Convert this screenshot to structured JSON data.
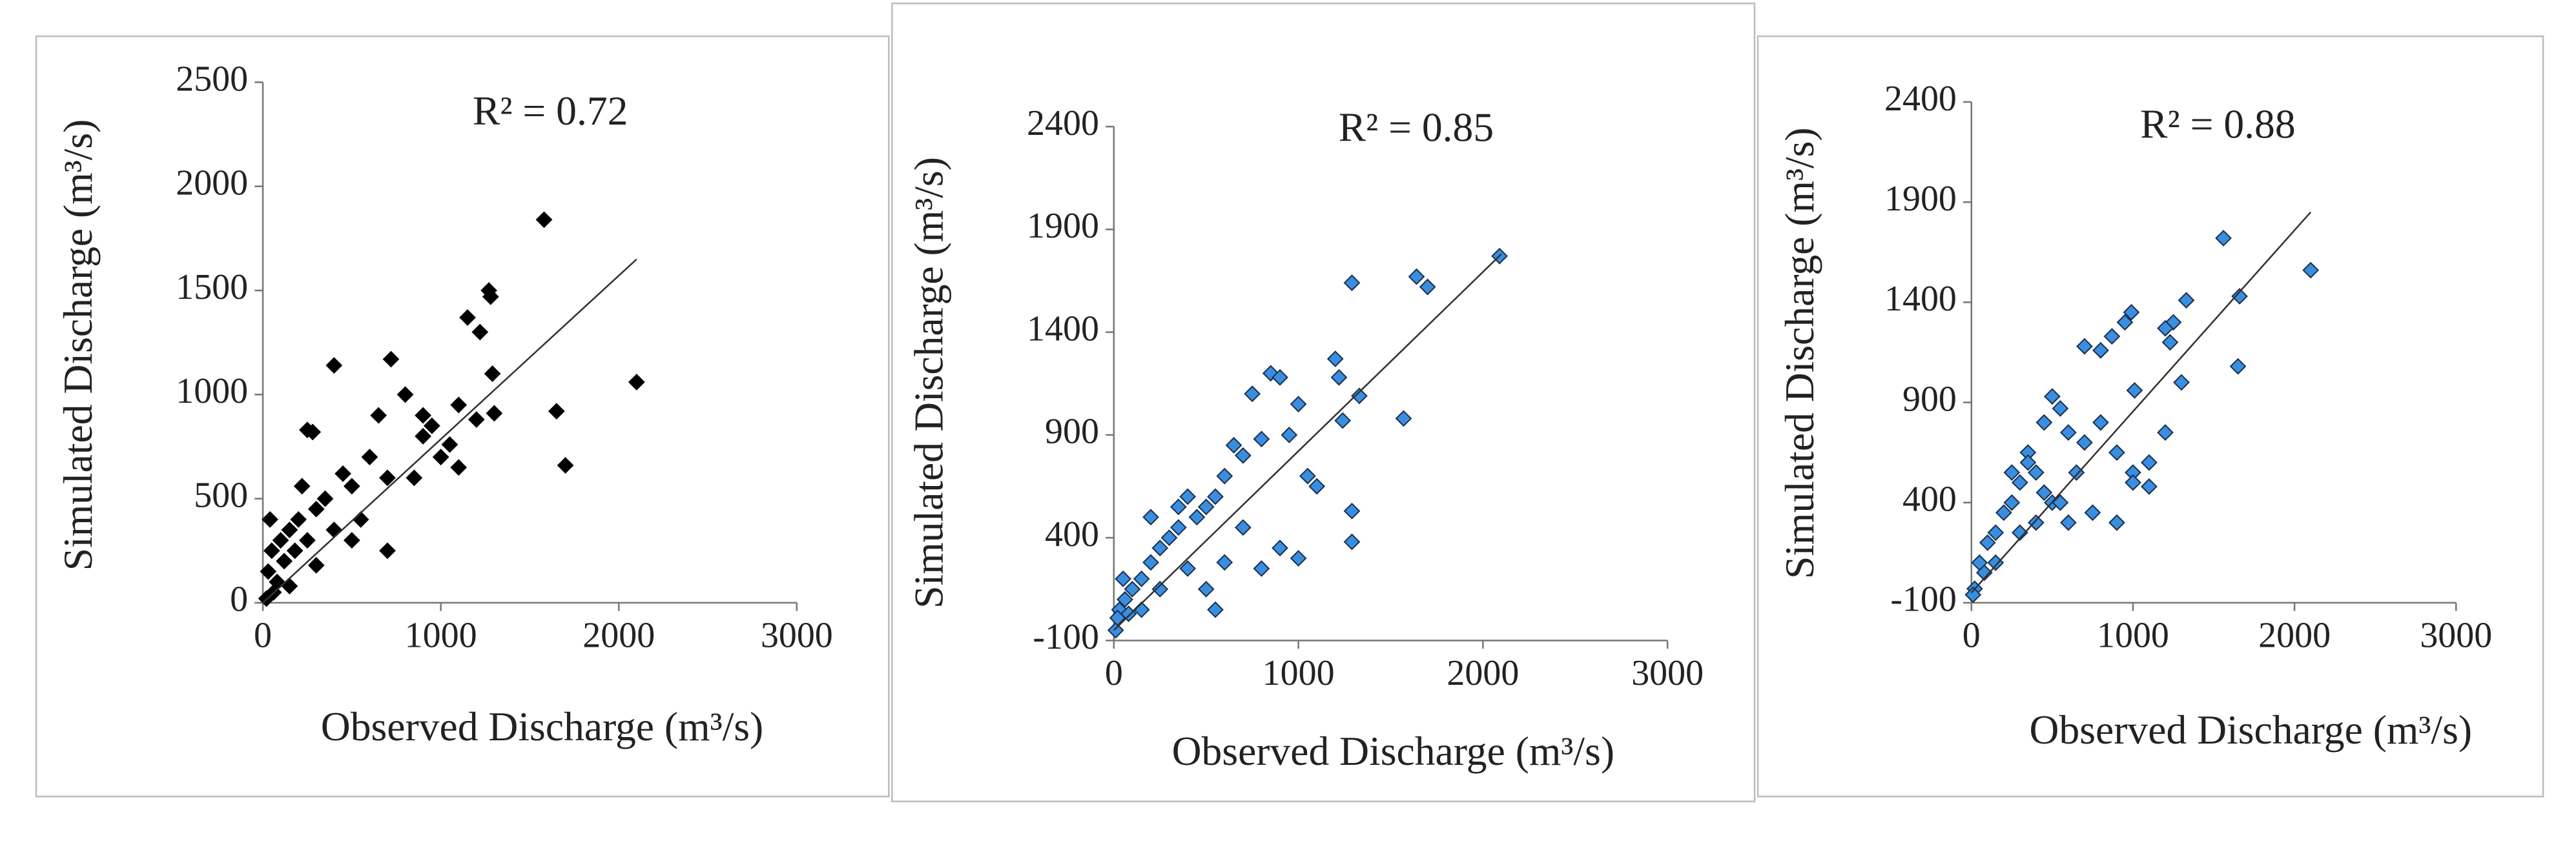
{
  "chart_data": [
    {
      "type": "scatter",
      "annotation": "R² = 0.72",
      "x_label": "Observed Discharge (m³/s)",
      "y_label": "Simulated Discharge (m³/s)",
      "color": "#000000",
      "edge_color": "#000000",
      "xlim": [
        0,
        3000
      ],
      "xticks": [
        0,
        1000,
        2000,
        3000
      ],
      "ylim": [
        0,
        2500
      ],
      "yticks": [
        0,
        500,
        1000,
        1500,
        2000,
        2500
      ],
      "x": [
        1580,
        1270,
        1280,
        1150,
        1220,
        1700,
        1650,
        2100,
        1290,
        1300,
        1200,
        400,
        720,
        280,
        250,
        800,
        900,
        1000,
        1050,
        1100,
        600,
        700,
        500,
        450,
        350,
        300,
        200,
        150,
        100,
        50,
        30,
        80,
        120,
        60,
        20,
        180,
        250,
        400,
        550,
        700,
        850,
        950,
        1100,
        650,
        900,
        300,
        150,
        40,
        220,
        500
      ],
      "values": [
        1840,
        1500,
        1470,
        1370,
        1300,
        660,
        920,
        1060,
        1100,
        910,
        880,
        1140,
        1170,
        820,
        830,
        1000,
        800,
        700,
        760,
        650,
        700,
        600,
        560,
        620,
        500,
        450,
        400,
        350,
        300,
        250,
        150,
        100,
        200,
        50,
        20,
        250,
        300,
        350,
        400,
        250,
        600,
        850,
        950,
        900,
        900,
        180,
        80,
        400,
        560,
        300
      ],
      "trendline": {
        "x": [
          0,
          2100
        ],
        "values": [
          0,
          1650
        ]
      }
    },
    {
      "type": "scatter",
      "annotation": "R² = 0.85",
      "x_label": "Observed Discharge (m³/s)",
      "y_label": "Simulated Discharge (m³/s)",
      "color": "#3a8ee0",
      "edge_color": "#1a3050",
      "xlim": [
        0,
        3000
      ],
      "xticks": [
        0,
        1000,
        2000,
        3000
      ],
      "ylim": [
        -100,
        2400
      ],
      "yticks": [
        -100,
        400,
        900,
        1400,
        1900,
        2400
      ],
      "x": [
        2090,
        1640,
        1700,
        1290,
        1570,
        1200,
        1220,
        1330,
        1240,
        1290,
        1290,
        850,
        900,
        750,
        1000,
        1050,
        1100,
        950,
        800,
        700,
        650,
        600,
        550,
        500,
        450,
        400,
        350,
        300,
        250,
        200,
        150,
        100,
        60,
        30,
        10,
        20,
        80,
        150,
        250,
        400,
        500,
        600,
        700,
        800,
        900,
        1000,
        550,
        350,
        200,
        50
      ],
      "values": [
        1770,
        1670,
        1620,
        1640,
        980,
        1270,
        1180,
        1090,
        970,
        530,
        380,
        1200,
        1180,
        1100,
        1050,
        700,
        650,
        900,
        880,
        800,
        850,
        700,
        600,
        550,
        500,
        600,
        450,
        400,
        350,
        280,
        200,
        150,
        100,
        50,
        -50,
        10,
        30,
        50,
        150,
        250,
        150,
        280,
        450,
        250,
        350,
        300,
        50,
        550,
        500,
        200
      ],
      "trendline": {
        "x": [
          0,
          2100
        ],
        "values": [
          -50,
          1780
        ]
      }
    },
    {
      "type": "scatter",
      "annotation": "R² = 0.88",
      "x_label": "Observed Discharge (m³/s)",
      "y_label": "Simulated Discharge (m³/s)",
      "color": "#3a8ee0",
      "edge_color": "#1a3050",
      "xlim": [
        0,
        3000
      ],
      "xticks": [
        0,
        1000,
        2000,
        3000
      ],
      "ylim": [
        -100,
        2400
      ],
      "yticks": [
        -100,
        400,
        900,
        1400,
        1900,
        2400
      ],
      "x": [
        1560,
        1660,
        2100,
        1650,
        1330,
        1250,
        1200,
        1230,
        990,
        950,
        1010,
        870,
        700,
        800,
        500,
        550,
        450,
        600,
        700,
        800,
        900,
        1000,
        1100,
        1200,
        1300,
        1100,
        1000,
        900,
        750,
        600,
        500,
        400,
        350,
        300,
        250,
        200,
        150,
        100,
        50,
        20,
        10,
        80,
        150,
        300,
        400,
        450,
        350,
        250,
        650,
        550
      ],
      "values": [
        1720,
        1430,
        1560,
        1080,
        1410,
        1300,
        1270,
        1200,
        1350,
        1300,
        960,
        1230,
        1180,
        1160,
        930,
        870,
        800,
        750,
        700,
        800,
        650,
        550,
        600,
        750,
        1000,
        480,
        500,
        300,
        350,
        300,
        400,
        550,
        650,
        500,
        400,
        350,
        250,
        200,
        100,
        -30,
        -60,
        50,
        100,
        250,
        300,
        450,
        600,
        550,
        550,
        400
      ],
      "trendline": {
        "x": [
          0,
          2100
        ],
        "values": [
          -50,
          1850
        ]
      }
    }
  ]
}
